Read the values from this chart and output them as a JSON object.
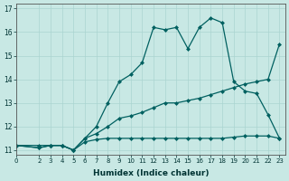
{
  "xlabel": "Humidex (Indice chaleur)",
  "ylabel": "",
  "xlim": [
    0,
    23.5
  ],
  "ylim": [
    10.8,
    17.2
  ],
  "yticks": [
    11,
    12,
    13,
    14,
    15,
    16,
    17
  ],
  "xticks": [
    0,
    2,
    3,
    4,
    5,
    6,
    7,
    8,
    9,
    10,
    11,
    12,
    13,
    14,
    15,
    16,
    17,
    18,
    19,
    20,
    21,
    22,
    23
  ],
  "background_color": "#c8e8e4",
  "line_color": "#006060",
  "series1_x": [
    0,
    2,
    3,
    4,
    5,
    6,
    7,
    8,
    9,
    10,
    11,
    12,
    13,
    14,
    15,
    16,
    17,
    18,
    19,
    20,
    21,
    22,
    23
  ],
  "series1_y": [
    11.2,
    11.1,
    11.2,
    11.2,
    11.0,
    11.35,
    11.45,
    11.5,
    11.5,
    11.5,
    11.5,
    11.5,
    11.5,
    11.5,
    11.5,
    11.5,
    11.5,
    11.5,
    11.55,
    11.6,
    11.6,
    11.6,
    11.5
  ],
  "series2_x": [
    0,
    2,
    3,
    4,
    5,
    6,
    7,
    8,
    9,
    10,
    11,
    12,
    13,
    14,
    15,
    16,
    17,
    18,
    19,
    20,
    21,
    22,
    23
  ],
  "series2_y": [
    11.2,
    11.2,
    11.2,
    11.2,
    11.0,
    11.5,
    11.7,
    12.0,
    12.35,
    12.45,
    12.6,
    12.8,
    13.0,
    13.0,
    13.1,
    13.2,
    13.35,
    13.5,
    13.65,
    13.8,
    13.9,
    14.0,
    15.5
  ],
  "series3_x": [
    0,
    2,
    3,
    4,
    5,
    6,
    7,
    8,
    9,
    10,
    11,
    12,
    13,
    14,
    15,
    16,
    17,
    18,
    19,
    20,
    21,
    22,
    23
  ],
  "series3_y": [
    11.2,
    11.1,
    11.2,
    11.2,
    11.0,
    11.5,
    12.0,
    13.0,
    13.9,
    14.2,
    14.7,
    16.2,
    16.1,
    16.2,
    15.3,
    16.2,
    16.6,
    16.4,
    13.9,
    13.5,
    13.4,
    12.5,
    11.5
  ]
}
